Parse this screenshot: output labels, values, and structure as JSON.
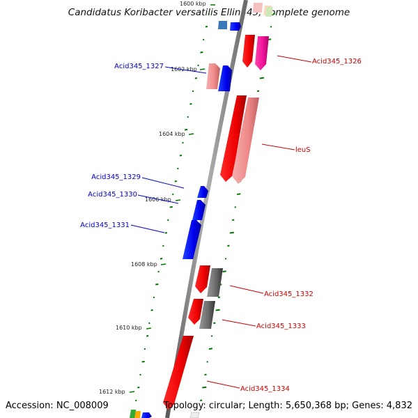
{
  "title": "Candidatus Koribacter versatilis Ellin345, complete genome",
  "accession": "Accession: NC_008009",
  "summary": "Topology: circular; Length: 5,650,368 bp; Genes: 4,832",
  "kbp_labels": [
    "1600 kbp",
    "1602 kbp",
    "1604 kbp",
    "1606 kbp",
    "1608 kbp",
    "1610 kbp",
    "1612 kbp"
  ],
  "genes_left": [
    "Acid345_1327",
    "Acid345_1329",
    "Acid345_1330",
    "Acid345_1331"
  ],
  "genes_right": [
    "Acid345_1326",
    "leuS",
    "Acid345_1332",
    "Acid345_1333",
    "Acid345_1334"
  ],
  "colors": {
    "reverse_strand_label": "#0000cc",
    "forward_strand_label": "#cc0000",
    "backbone": "#808080",
    "tick": "#007700"
  }
}
